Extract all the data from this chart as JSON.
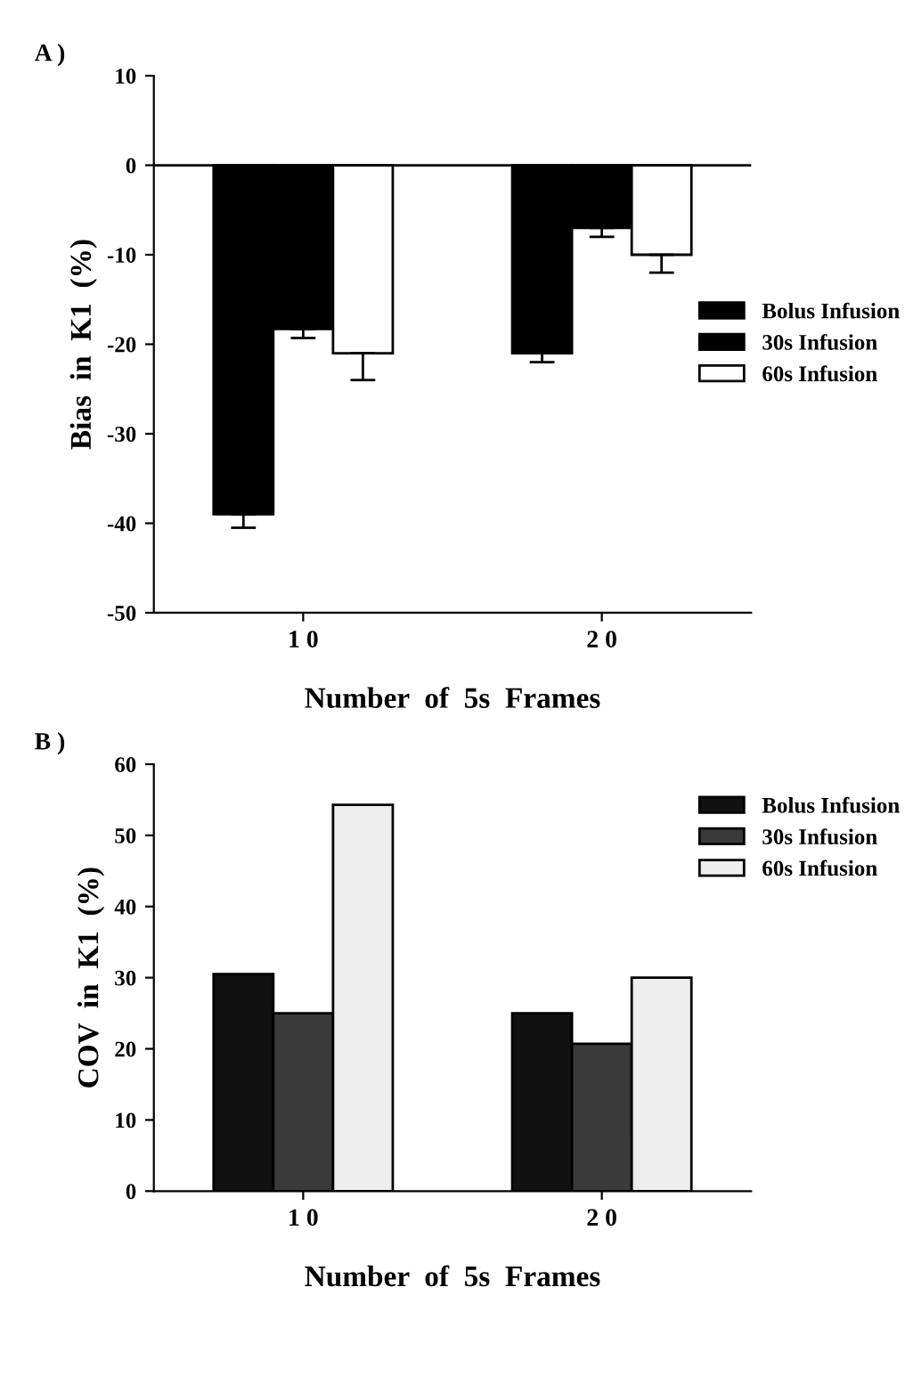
{
  "chart_data": [
    {
      "type": "bar",
      "title": "A )",
      "xlabel": "Number  of  5s  Frames",
      "ylabel": "Bias  in  K1  (%)",
      "categories": [
        "1 0",
        "2 0"
      ],
      "series": [
        {
          "name": "Bolus Infusion",
          "color": "#000000",
          "values": [
            -39,
            -21
          ],
          "errors": [
            [
              -40.5,
              -39
            ],
            [
              -22,
              -21
            ]
          ]
        },
        {
          "name": "30s Infusion",
          "color": "#000000",
          "values": [
            -18.3,
            -7
          ],
          "errors": [
            [
              -19.3,
              -18.3
            ],
            [
              -8,
              -7
            ]
          ]
        },
        {
          "name": "60s Infusion",
          "color": "#ffffff",
          "values": [
            -21,
            -10
          ],
          "errors": [
            [
              -24,
              -21
            ],
            [
              -12,
              -10
            ]
          ]
        }
      ],
      "ylim": [
        -50,
        10
      ],
      "yticks": [
        -50,
        -40,
        -30,
        -20,
        -10,
        0,
        10
      ],
      "ref_lines": [
        {
          "axis": "y",
          "value": 0
        }
      ],
      "legend": "center right",
      "grid": false
    },
    {
      "type": "bar",
      "title": "B )",
      "xlabel": "Number  of  5s  Frames",
      "ylabel": "COV  in  K1  (%)",
      "categories": [
        "1 0",
        "2 0"
      ],
      "series": [
        {
          "name": "Bolus Infusion",
          "color": "#111111",
          "values": [
            30.5,
            25
          ]
        },
        {
          "name": "30s Infusion",
          "color": "#3a3a3a",
          "values": [
            25,
            20.7
          ]
        },
        {
          "name": "60s Infusion",
          "color": "#eeeeee",
          "values": [
            54.3,
            30
          ]
        }
      ],
      "ylim": [
        0,
        60
      ],
      "yticks": [
        0,
        10,
        20,
        30,
        40,
        50,
        60
      ],
      "legend": "top right",
      "grid": false
    }
  ]
}
